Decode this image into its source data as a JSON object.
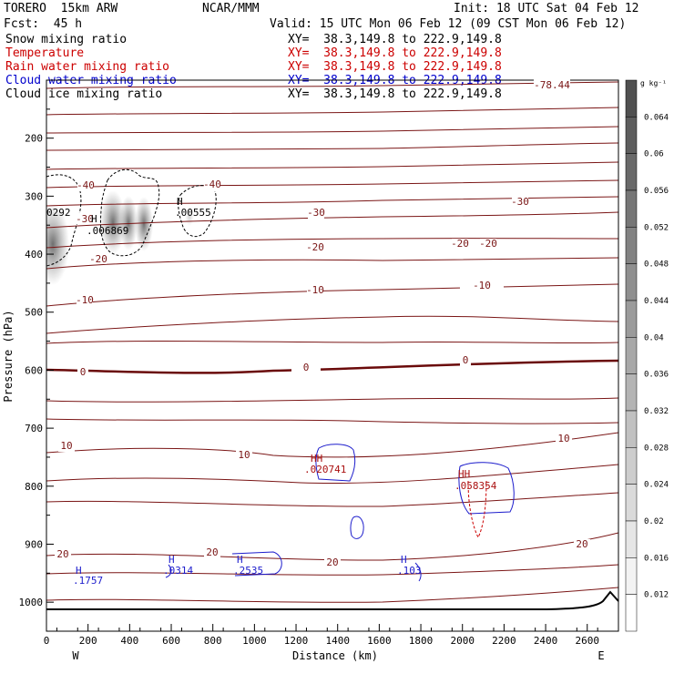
{
  "header": {
    "model": "TORERO  15km ARW",
    "center": "NCAR/MMM",
    "init": "Init: 18 UTC Sat 04 Feb 12",
    "fcst": "Fcst:  45 h",
    "valid": "Valid: 15 UTC Mon 06 Feb 12 (09 CST Mon 06 Feb 12)"
  },
  "fields": [
    {
      "name": "Snow mixing ratio",
      "xy": "XY=  38.3,149.8 to 222.9,149.8",
      "color": "#000000"
    },
    {
      "name": "Temperature",
      "xy": "XY=  38.3,149.8 to 222.9,149.8",
      "color": "#cc0000"
    },
    {
      "name": "Rain water mixing ratio",
      "xy": "XY=  38.3,149.8 to 222.9,149.8",
      "color": "#cc0000"
    },
    {
      "name": "Cloud water mixing ratio",
      "xy": "XY=  38.3,149.8 to 222.9,149.8",
      "color": "#0000cc"
    },
    {
      "name": "Cloud ice mixing ratio",
      "xy": "XY=  38.3,149.8 to 222.9,149.8",
      "color": "#000000"
    }
  ],
  "chart_data": {
    "type": "cross-section",
    "xlabel": "Distance (km)",
    "ylabel": "Pressure (hPa)",
    "xlim": [
      0,
      2750
    ],
    "ylim": [
      100,
      1050
    ],
    "x_ticks": [
      "0",
      "200",
      "400",
      "600",
      "800",
      "1000",
      "1200",
      "1400",
      "1600",
      "1800",
      "2000",
      "2200",
      "2400",
      "2600"
    ],
    "y_ticks": [
      "200",
      "300",
      "400",
      "500",
      "600",
      "700",
      "800",
      "900",
      "1000"
    ],
    "left_end": "W",
    "right_end": "E",
    "colorbar": {
      "unit": "g kg⁻¹",
      "levels": [
        "0.064",
        "0.06",
        "0.056",
        "0.052",
        "0.048",
        "0.044",
        "0.04",
        "0.036",
        "0.032",
        "0.028",
        "0.024",
        "0.02",
        "0.016",
        "0.012"
      ]
    },
    "temperature_labels": [
      "-78.44",
      "-40",
      "-40",
      "-30",
      "-30",
      "-30",
      "-20",
      "-20",
      "-20",
      "-20",
      "-10",
      "-10",
      "-10",
      "0",
      "0",
      "0",
      "10",
      "10",
      "10",
      "20",
      "20",
      "20",
      "20"
    ],
    "cloud_labels": [
      {
        "mark": "H",
        "value": ".1757"
      },
      {
        "mark": "H",
        "value": ".0314"
      },
      {
        "mark": "H",
        "value": ".2535"
      },
      {
        "mark": "H",
        "value": ".103"
      },
      {
        "mark": "HH",
        "value": ".020741"
      },
      {
        "mark": "HH",
        "value": ".058354"
      }
    ],
    "snow_labels": [
      {
        "mark": "H",
        "value": ".006869"
      },
      {
        "mark": "H",
        "value": ".00555"
      },
      {
        "mark": "",
        "value": "0292"
      }
    ]
  }
}
